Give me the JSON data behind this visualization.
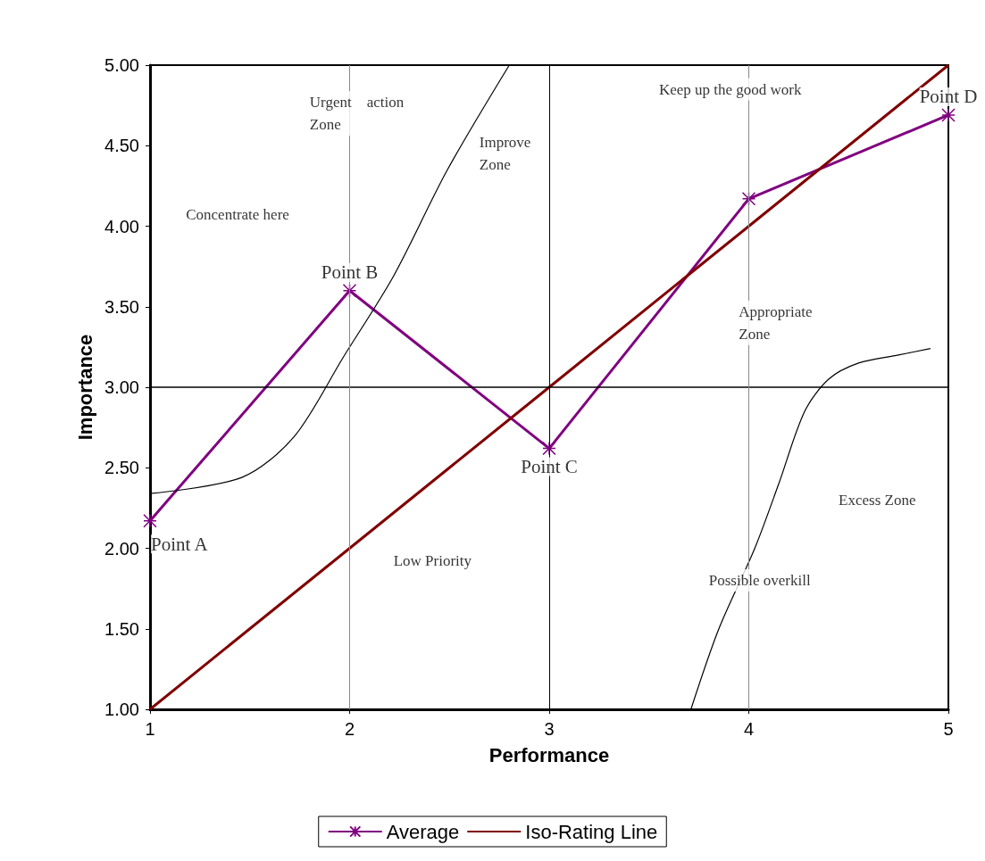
{
  "chart_data": {
    "type": "line",
    "xlabel": "Performance",
    "ylabel": "Importance",
    "x": [
      1,
      2,
      3,
      4,
      5
    ],
    "series": [
      {
        "name": "Average",
        "color": "#800080",
        "values": [
          2.17,
          3.6,
          2.62,
          4.17,
          4.69
        ],
        "marker": "cross"
      },
      {
        "name": "Iso-Rating Line",
        "color": "#800000",
        "values": [
          1,
          2,
          3,
          4,
          5
        ],
        "marker": "none"
      },
      {
        "color": "#000000",
        "x": [
          1,
          1.46,
          1.72,
          1.97,
          2.22,
          2.49,
          2.8
        ],
        "values": [
          2.34,
          2.44,
          2.69,
          3.19,
          3.69,
          4.35,
          5.0
        ],
        "marker": "none"
      },
      {
        "color": "#000000",
        "x": [
          3.71,
          3.85,
          4.03,
          4.15,
          4.28,
          4.4,
          4.55,
          4.75,
          4.91
        ],
        "values": [
          1,
          1.5,
          2,
          2.4,
          2.85,
          3.05,
          3.15,
          3.2,
          3.24
        ],
        "marker": "none"
      }
    ],
    "xlim": [
      1,
      5
    ],
    "xticks": [
      1,
      2,
      3,
      4,
      5
    ],
    "ylim": [
      1,
      5
    ],
    "yticks": [
      {
        "value": 1,
        "label": "1.00"
      },
      {
        "value": 1.5,
        "label": "1.50"
      },
      {
        "value": 2,
        "label": "2.00"
      },
      {
        "value": 2.5,
        "label": "2.50"
      },
      {
        "value": 3,
        "label": "3.00"
      },
      {
        "value": 3.5,
        "label": "3.50"
      },
      {
        "value": 4,
        "label": "4.00"
      },
      {
        "value": 4.5,
        "label": "4.50"
      },
      {
        "value": 5,
        "label": "5.00"
      }
    ],
    "legend": "bottom",
    "ref_lines": [
      {
        "axis": "y",
        "value": 3,
        "color": "#000000"
      },
      {
        "axis": "x",
        "value": 3,
        "color": "#000000"
      },
      {
        "axis": "x",
        "value": 2,
        "color": "#888888"
      },
      {
        "axis": "x",
        "value": 4,
        "color": "#888888"
      }
    ],
    "annotations": [
      {
        "text": "Point A",
        "x": 1,
        "y": 2.17
      },
      {
        "text": "Point B",
        "x": 2,
        "y": 3.6
      },
      {
        "text": "Point C",
        "x": 3,
        "y": 2.62
      },
      {
        "text": "Point D",
        "x": 5,
        "y": 4.69
      },
      "Urgent    action\nZone",
      "Improve\nZone",
      "Keep up the good work",
      "Concentrate here",
      "Appropriate\nZone",
      "Low Priority",
      "Possible overkill",
      "Excess Zone"
    ]
  }
}
